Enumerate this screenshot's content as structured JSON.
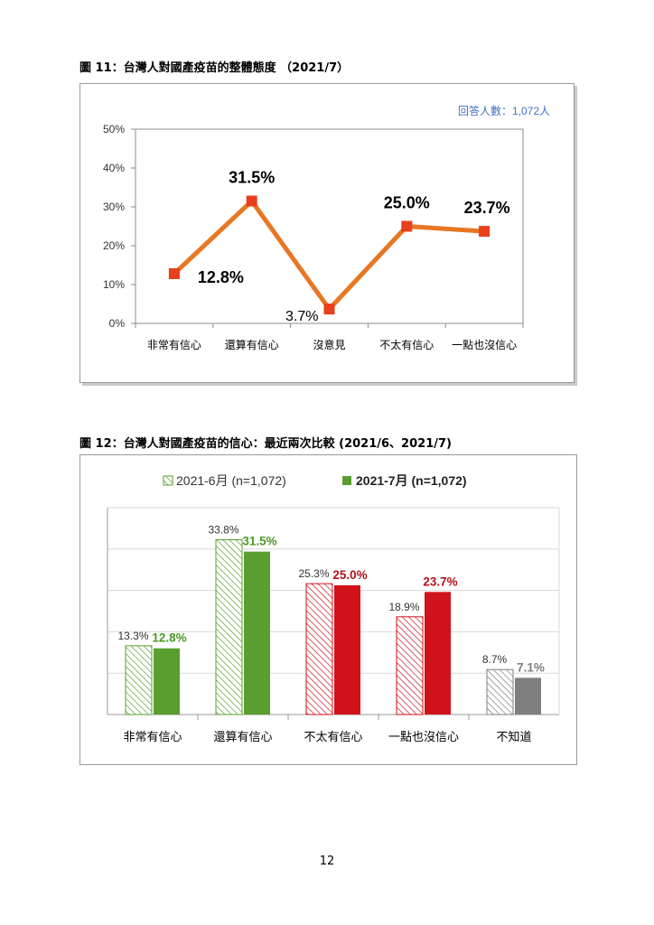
{
  "figures": {
    "fig11_title": "圖 11：台灣人對國產疫苗的整體態度 （2021/7）",
    "fig12_title": "圖 12：台灣人對國產疫苗的信心：最近兩次比較 (2021/6、2021/7)"
  },
  "page_number": "12",
  "chart_data": [
    {
      "type": "line",
      "categories": [
        "非常有信心",
        "還算有信心",
        "沒意見",
        "不太有信心",
        "一點也沒信心"
      ],
      "values": [
        12.8,
        31.5,
        3.7,
        25.0,
        23.7
      ],
      "value_labels": [
        "12.8%",
        "31.5%",
        "3.7%",
        "25.0%",
        "23.7%"
      ],
      "y_ticks": [
        "0%",
        "10%",
        "20%",
        "30%",
        "40%",
        "50%"
      ],
      "ylim": [
        0,
        50
      ],
      "annotation": "回答人數：1,072人",
      "grid": false,
      "colors": {
        "line": "#E87722",
        "marker": "#E8401C",
        "annotation": "#4472C4"
      }
    },
    {
      "type": "bar",
      "categories": [
        "非常有信心",
        "還算有信心",
        "不太有信心",
        "一點也沒信心",
        "不知道"
      ],
      "series": [
        {
          "name": "2021-6月  (n=1,072)",
          "values": [
            13.3,
            33.8,
            25.3,
            18.9,
            8.7
          ],
          "labels": [
            "13.3%",
            "33.8%",
            "25.3%",
            "18.9%",
            "8.7%"
          ],
          "style": "hatched"
        },
        {
          "name": "2021-7月  (n=1,072)",
          "values": [
            12.8,
            31.5,
            25.0,
            23.7,
            7.1
          ],
          "labels": [
            "12.8%",
            "31.5%",
            "25.0%",
            "23.7%",
            "7.1%"
          ],
          "style": "solid"
        }
      ],
      "ylim": [
        0,
        40
      ],
      "grid": true,
      "legend_position": "top",
      "colors": {
        "positive": "#5A9E2F",
        "negative": "#D0121B",
        "neutral": "#7F7F7F",
        "positive_text": "#4D9A25",
        "negative_text": "#B3121B"
      }
    }
  ]
}
